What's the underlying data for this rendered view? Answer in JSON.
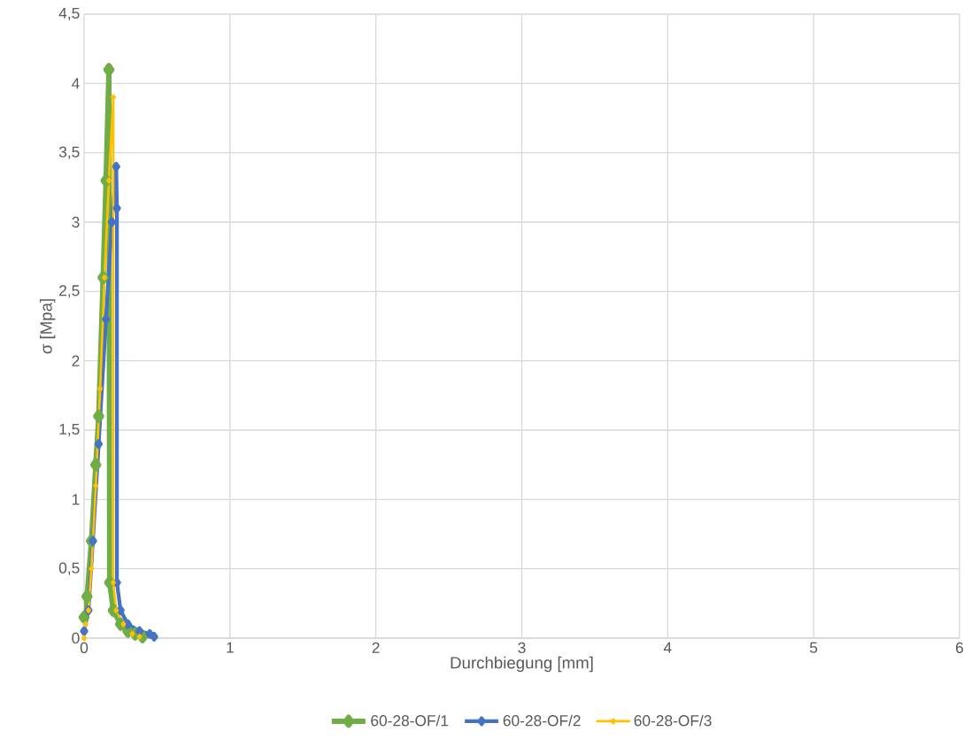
{
  "chart_data": {
    "type": "line",
    "xlabel": "Durchbiegung [mm]",
    "ylabel": "σ [Mpa]",
    "xlim": [
      0,
      6
    ],
    "ylim": [
      0,
      4.5
    ],
    "xticks": [
      0,
      1,
      2,
      3,
      4,
      5,
      6
    ],
    "yticks": [
      0,
      {
        "value": 0.5,
        "label": "0,5"
      },
      1,
      {
        "value": 1.5,
        "label": "1,5"
      },
      2,
      {
        "value": 2.5,
        "label": "2,5"
      },
      3,
      {
        "value": 3.5,
        "label": "3,5"
      },
      4,
      {
        "value": 4.5,
        "label": "4,5"
      }
    ],
    "grid": true,
    "legend": "bottom",
    "marker": "diamond",
    "line_style": "solid",
    "series": [
      {
        "name": "60-28-OF/1",
        "color": "#70ad47",
        "x": [
          0,
          0.02,
          0.05,
          0.08,
          0.1,
          0.13,
          0.15,
          0.17,
          0.175,
          0.2,
          0.25,
          0.3,
          0.35,
          0.4
        ],
        "values": [
          0.15,
          0.3,
          0.7,
          1.25,
          1.6,
          2.6,
          3.3,
          4.1,
          0.4,
          0.2,
          0.1,
          0.05,
          0.03,
          0.01
        ]
      },
      {
        "name": "60-28-OF/2",
        "color": "#4472c4",
        "x": [
          0,
          0.03,
          0.06,
          0.1,
          0.15,
          0.19,
          0.22,
          0.225,
          0.225,
          0.25,
          0.3,
          0.38,
          0.45,
          0.48
        ],
        "values": [
          0.05,
          0.2,
          0.7,
          1.4,
          2.3,
          3.0,
          3.4,
          3.1,
          0.4,
          0.2,
          0.1,
          0.05,
          0.03,
          0.01
        ]
      },
      {
        "name": "60-28-OF/3",
        "color": "#ffc000",
        "x": [
          0,
          0.01,
          0.03,
          0.05,
          0.08,
          0.11,
          0.14,
          0.17,
          0.2,
          0.2,
          0.22,
          0.27,
          0.33,
          0.38
        ],
        "values": [
          0,
          0.1,
          0.2,
          0.5,
          1.1,
          1.8,
          2.6,
          3.3,
          3.9,
          0.4,
          0.2,
          0.1,
          0.03,
          0.01
        ]
      }
    ]
  }
}
